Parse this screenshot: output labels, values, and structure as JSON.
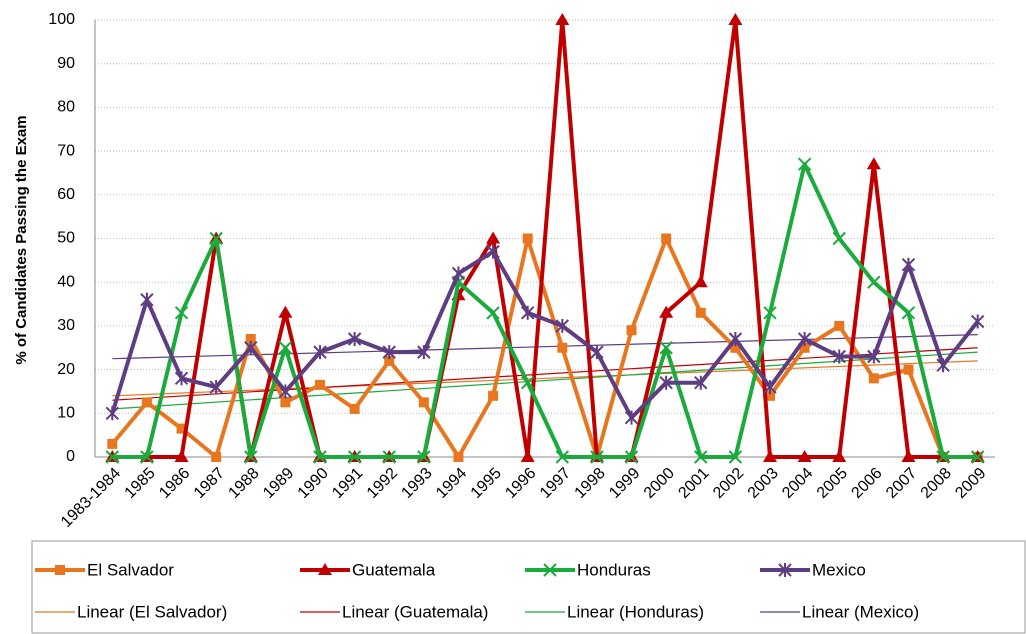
{
  "chart_data": {
    "type": "line",
    "ylabel": "% of Candidates Passing the Exam",
    "categories": [
      "1983-1984",
      "1985",
      "1986",
      "1987",
      "1988",
      "1989",
      "1990",
      "1991",
      "1992",
      "1993",
      "1994",
      "1995",
      "1996",
      "1997",
      "1998",
      "1999",
      "2000",
      "2001",
      "2002",
      "2003",
      "2004",
      "2005",
      "2006",
      "2007",
      "2008",
      "2009"
    ],
    "series": [
      {
        "name": "El Salvador",
        "color": "#e8761f",
        "marker": "square",
        "trend_name": "Linear (El Salvador)",
        "trend": [
          14,
          22
        ],
        "values": [
          3,
          12.5,
          6.5,
          0,
          27,
          12.5,
          16.5,
          11,
          22,
          12.5,
          0,
          14,
          50,
          25,
          0,
          29,
          50,
          33,
          25,
          14,
          25,
          30,
          18,
          20,
          0,
          0
        ]
      },
      {
        "name": "Guatemala",
        "color": "#c00000",
        "marker": "triangle",
        "trend_name": "Linear (Guatemala)",
        "trend": [
          13,
          25
        ],
        "values": [
          0,
          0,
          0,
          50,
          0,
          33,
          0,
          0,
          0,
          0,
          37,
          50,
          0,
          100,
          0,
          0,
          33,
          40,
          100,
          0,
          0,
          0,
          67,
          0,
          0,
          0
        ]
      },
      {
        "name": "Honduras",
        "color": "#1aab3c",
        "marker": "x",
        "trend_name": "Linear (Honduras)",
        "trend": [
          11,
          24
        ],
        "values": [
          0,
          0,
          33,
          50,
          0,
          25,
          0,
          0,
          0,
          0,
          40,
          33,
          17,
          0,
          0,
          0,
          25,
          0,
          0,
          33,
          67,
          50,
          40,
          33,
          0,
          0
        ]
      },
      {
        "name": "Mexico",
        "color": "#5e3d80",
        "marker": "star",
        "trend_name": "Linear (Mexico)",
        "trend": [
          22.5,
          28
        ],
        "values": [
          10,
          36,
          18,
          16,
          25,
          15,
          24,
          27,
          24,
          24,
          42,
          47,
          33,
          30,
          24,
          9,
          17,
          17,
          27,
          16,
          27,
          23,
          23,
          44,
          21,
          31
        ]
      }
    ],
    "ylim": [
      0,
      100
    ],
    "yticks": [
      0,
      10,
      20,
      30,
      40,
      50,
      60,
      70,
      80,
      90,
      100
    ],
    "grid": true
  }
}
